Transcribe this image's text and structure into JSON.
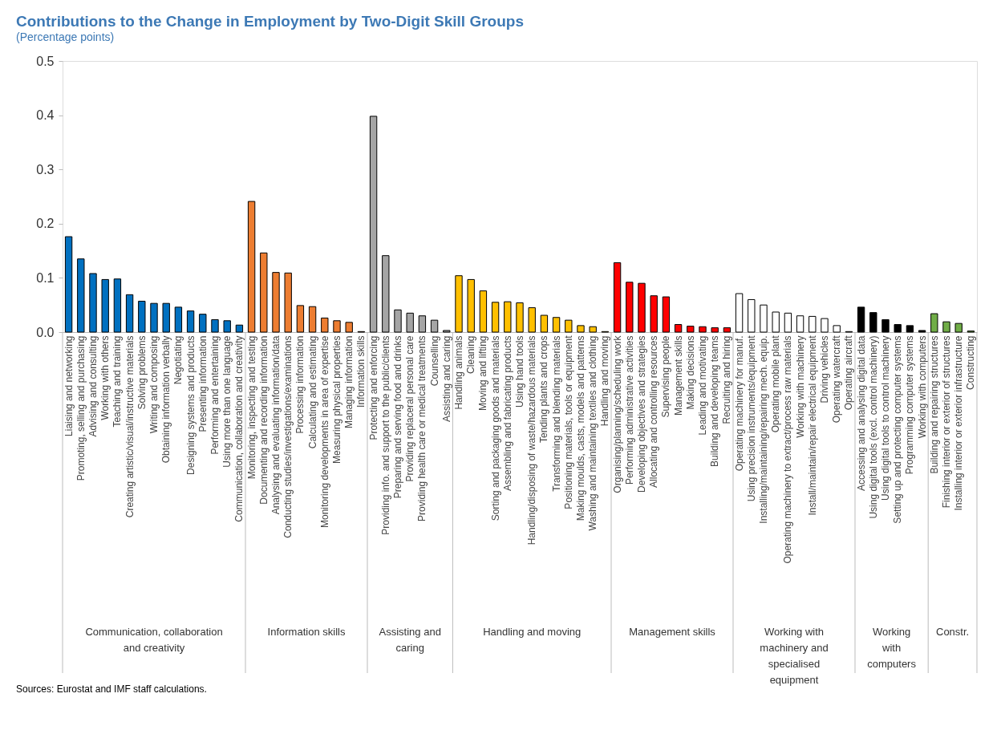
{
  "chart_data": {
    "type": "bar",
    "title": "Contributions to the Change in Employment by Two-Digit Skill Groups",
    "subtitle": "(Percentage points)",
    "categories": [
      "Liaising and networking",
      "Promoting, selling and purchasing",
      "Advising and consulting",
      "Working with others",
      "Teaching and training",
      "Creating artistic/visual/instructive materials",
      "Solving problems",
      "Writing and composing",
      "Obtaining information verbally",
      "Negotiating",
      "Designing systems and products",
      "Presenting information",
      "Performing and entertaining",
      "Using more than one language",
      "Communication, collaboration and creativity",
      "Monitoring, inspecting and testing",
      "Documenting and recording information",
      "Analysing and evaluating information/data",
      "Conducting studies/investigations/examinations",
      "Processing information",
      "Calculating and estimating",
      "Monitoring developments in area of expertise",
      "Measuring physical properties",
      "Managing information",
      "Information skills",
      "Protecting and enforcing",
      "Providing info. and support to the public/clients",
      "Preparing and serving food and drinks",
      "Providing replaceral personal care",
      "Providing health care or medical treatments",
      "Counselling",
      "Assisting and caring",
      "Handling animals",
      "Cleaning",
      "Moving and lifting",
      "Sorting and packaging goods and materials",
      "Assembling and fabricating products",
      "Using hand tools",
      "Handling/disposing of waste/hazardous materials",
      "Tending plants and crops",
      "Transforming and blending materials",
      "Positioning materials, tools or equipment",
      "Making moulds, casts, models and patterns",
      "Washing and maintaining textiles and clothing",
      "Handling and moving",
      "Organising/planning/scheduling work",
      "Performing administrative activities",
      "Developing objectives and strategies",
      "Allocating and controlling resources",
      "Supervising people",
      "Management skills",
      "Making decisions",
      "Leading and motivating",
      "Building and developing teams",
      "Recruiting and hiring",
      "Operating machinery for manuf.",
      "Using precision instruments/equipment",
      "Installing/maintaining/repairing mech. equip.",
      "Operating mobile plant",
      "Operating machinery to extract/process raw materials",
      "Working with machinery",
      "Install/maintain/repair electrical equipment",
      "Driving vehicles",
      "Operating watercraft",
      "Operating aircraft",
      "Accessing and analysing digital data",
      "Using digital tools (excl. control machinery)",
      "Using digital tools to control machinery",
      "Setting up and protecting computer systems",
      "Programming computer systems",
      "Working with computers",
      "Building and repairing structures",
      "Finishing interior or exterior of structures",
      "Installing interior or exterior infrastructure",
      "Constructing"
    ],
    "values": [
      0.176,
      0.135,
      0.108,
      0.097,
      0.098,
      0.069,
      0.057,
      0.053,
      0.053,
      0.046,
      0.039,
      0.033,
      0.023,
      0.021,
      0.013,
      0.241,
      0.146,
      0.11,
      0.109,
      0.049,
      0.047,
      0.026,
      0.021,
      0.018,
      0.001,
      0.398,
      0.141,
      0.041,
      0.035,
      0.03,
      0.022,
      0.003,
      0.104,
      0.097,
      0.076,
      0.055,
      0.056,
      0.054,
      0.045,
      0.031,
      0.027,
      0.022,
      0.012,
      0.01,
      0.001,
      0.128,
      0.092,
      0.09,
      0.067,
      0.065,
      0.014,
      0.011,
      0.01,
      0.008,
      0.008,
      0.071,
      0.06,
      0.05,
      0.037,
      0.035,
      0.03,
      0.029,
      0.025,
      0.012,
      0.001,
      0.046,
      0.036,
      0.023,
      0.014,
      0.012,
      0.003,
      0.034,
      0.019,
      0.016,
      0.002
    ],
    "colors": [
      "#0070c0",
      "#0070c0",
      "#0070c0",
      "#0070c0",
      "#0070c0",
      "#0070c0",
      "#0070c0",
      "#0070c0",
      "#0070c0",
      "#0070c0",
      "#0070c0",
      "#0070c0",
      "#0070c0",
      "#0070c0",
      "#0070c0",
      "#ed7d31",
      "#ed7d31",
      "#ed7d31",
      "#ed7d31",
      "#ed7d31",
      "#ed7d31",
      "#ed7d31",
      "#ed7d31",
      "#ed7d31",
      "#ed7d31",
      "#a5a5a5",
      "#a5a5a5",
      "#a5a5a5",
      "#a5a5a5",
      "#a5a5a5",
      "#a5a5a5",
      "#a5a5a5",
      "#ffc000",
      "#ffc000",
      "#ffc000",
      "#ffc000",
      "#ffc000",
      "#ffc000",
      "#ffc000",
      "#ffc000",
      "#ffc000",
      "#ffc000",
      "#ffc000",
      "#ffc000",
      "#ffc000",
      "#ff0000",
      "#ff0000",
      "#ff0000",
      "#ff0000",
      "#ff0000",
      "#ff0000",
      "#ff0000",
      "#ff0000",
      "#ff0000",
      "#ff0000",
      "#ffffff",
      "#ffffff",
      "#ffffff",
      "#ffffff",
      "#ffffff",
      "#ffffff",
      "#ffffff",
      "#ffffff",
      "#ffffff",
      "#ffffff",
      "#000000",
      "#000000",
      "#000000",
      "#000000",
      "#000000",
      "#000000",
      "#70ad47",
      "#70ad47",
      "#70ad47",
      "#70ad47"
    ],
    "ylim": [
      0,
      0.5
    ],
    "yticks": [
      {
        "value": 0,
        "label": "0.0"
      },
      0.1,
      0.2,
      0.3,
      0.4,
      0.5
    ],
    "grid": false,
    "annotations": [
      "Communication, collaboration and creativity",
      "Information skills",
      "Assisting and caring",
      "Handling and moving",
      "Management skills",
      "Working with machinery and specialised equipment",
      "Working with computers",
      "Constr.",
      "Sources: Eurostat and IMF staff calculations."
    ]
  }
}
